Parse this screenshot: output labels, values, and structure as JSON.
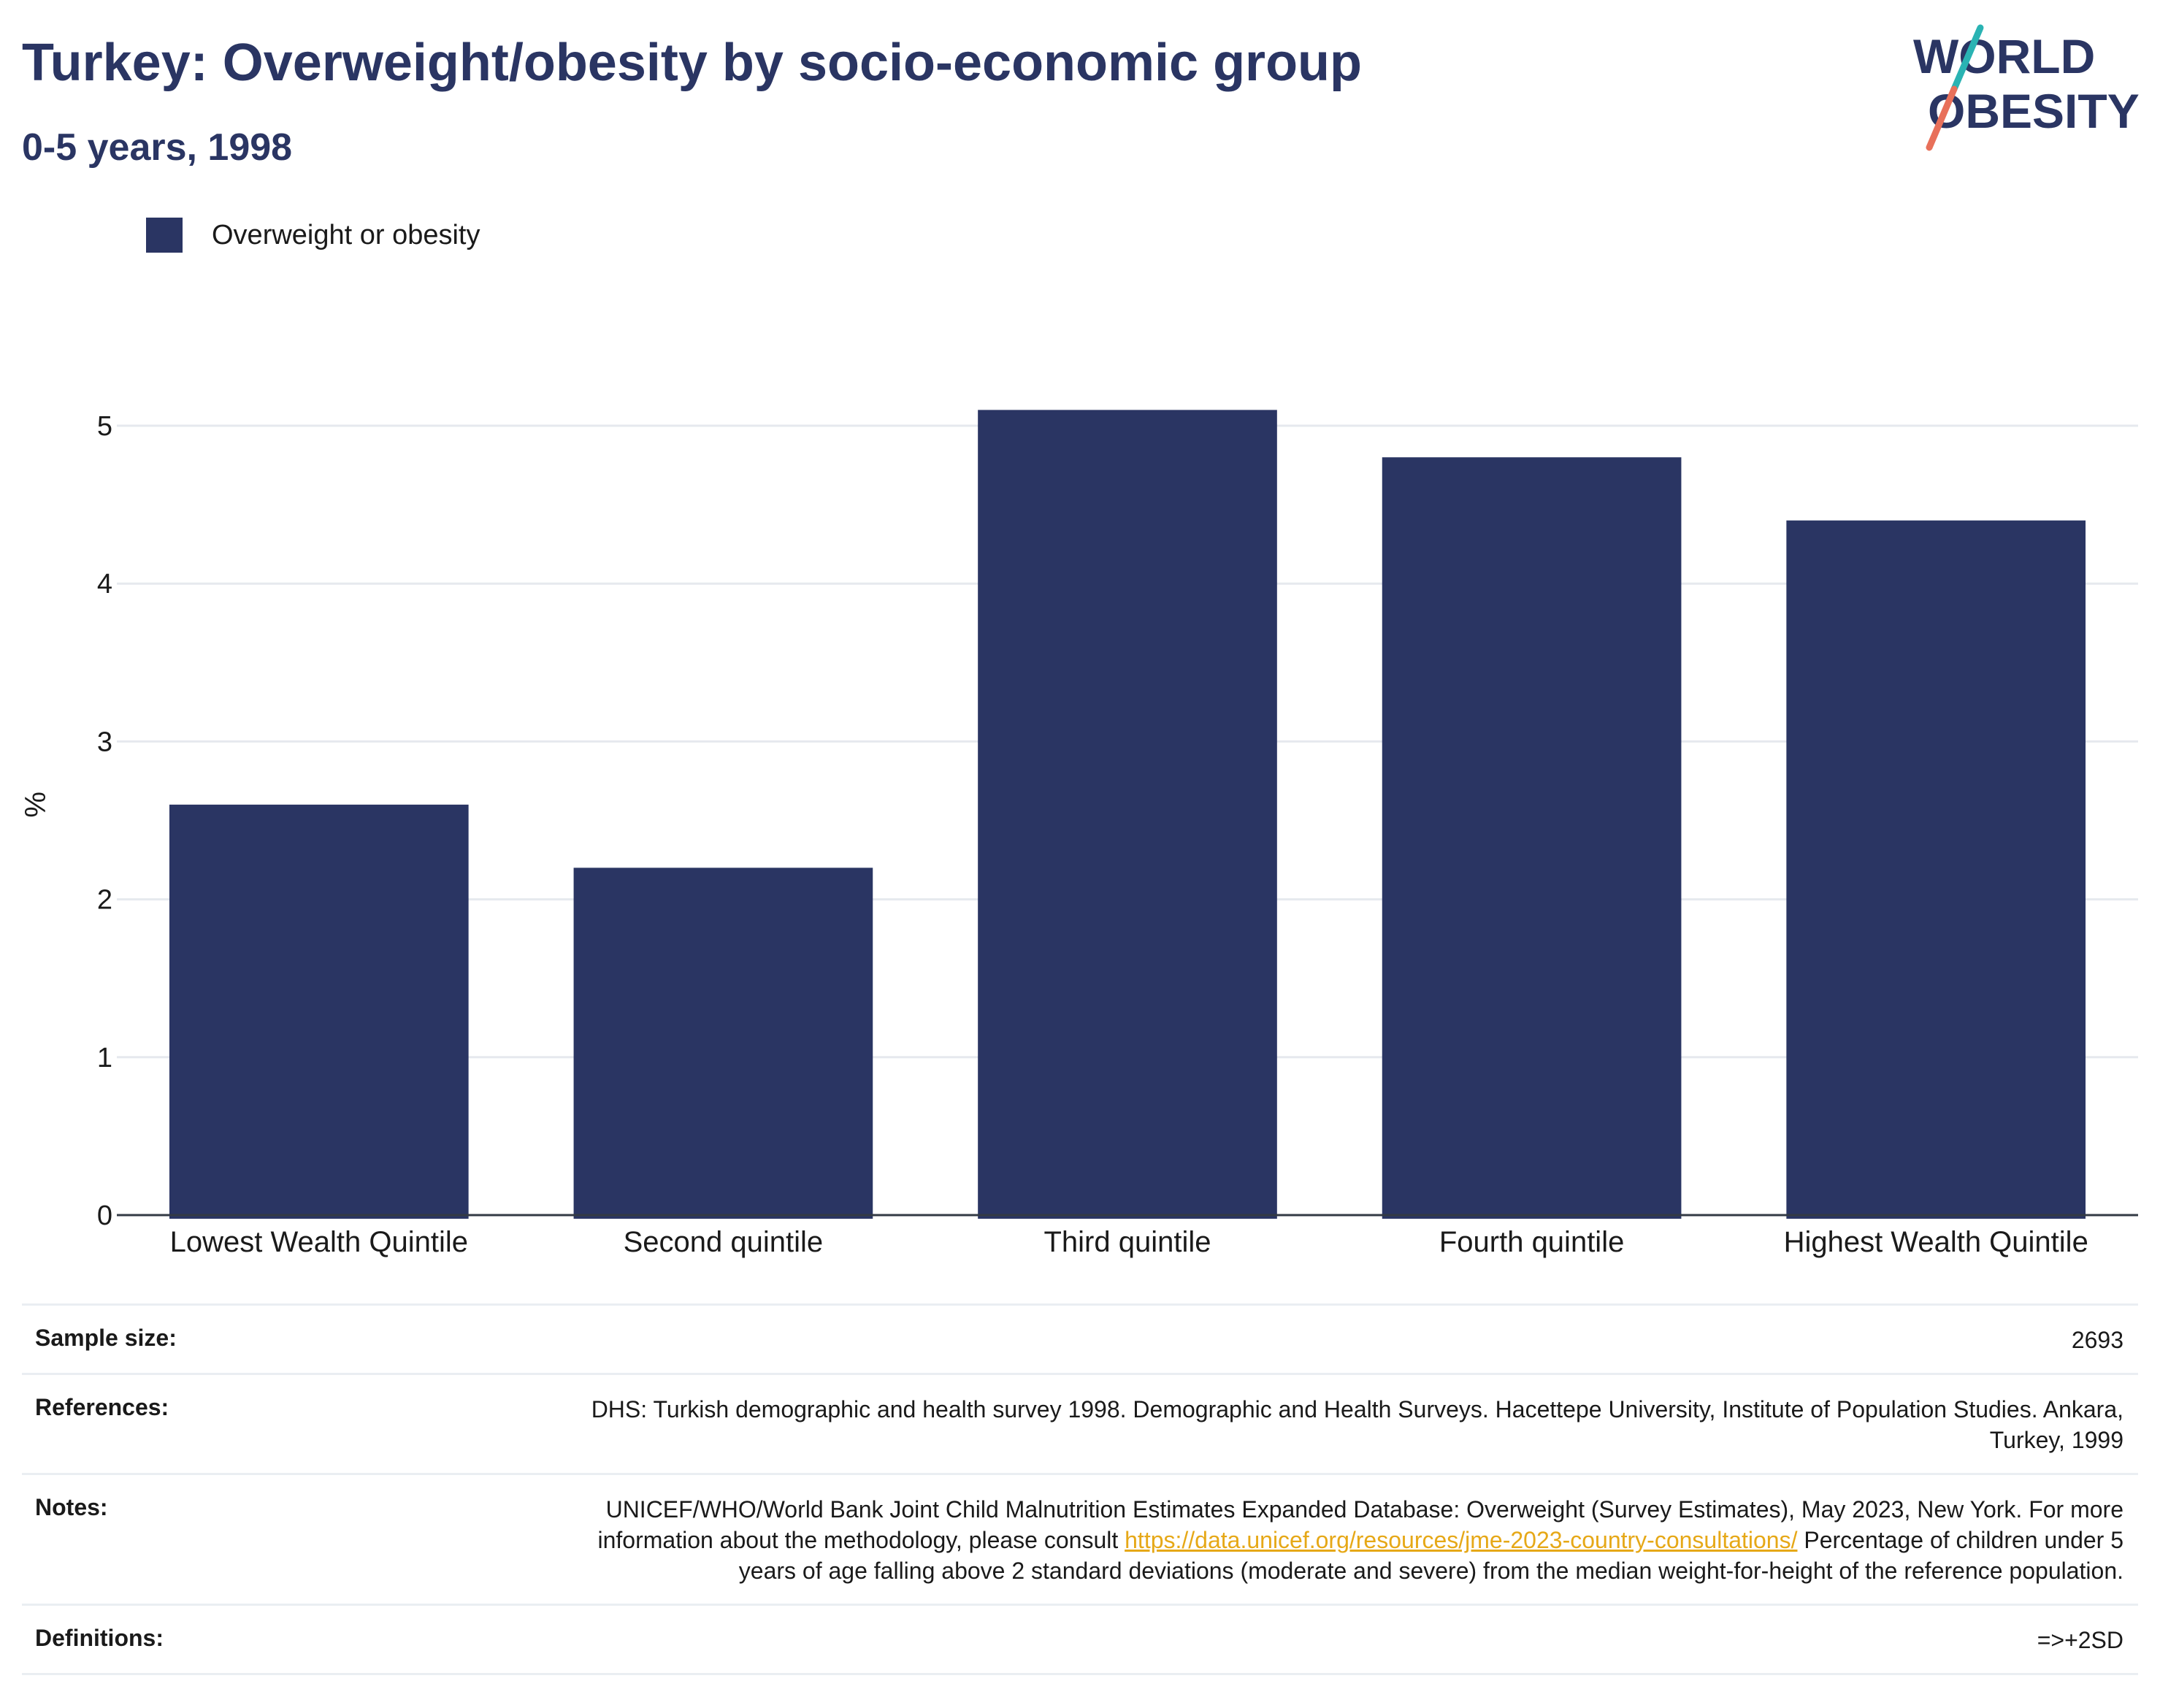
{
  "header": {
    "title": "Turkey: Overweight/obesity by socio-economic group",
    "subtitle": "0-5 years, 1998"
  },
  "logo": {
    "line1": "WORLD",
    "line2": "OBESITY",
    "colors": {
      "text": "#2a3563",
      "slash_top": "#2ab3b3",
      "slash_bottom": "#e8705a"
    }
  },
  "legend": {
    "label": "Overweight or obesity",
    "color": "#2a3563"
  },
  "chart_data": {
    "type": "bar",
    "title": "Turkey: Overweight/obesity by socio-economic group",
    "subtitle": "0-5 years, 1998",
    "categories": [
      "Lowest Wealth Quintile",
      "Second quintile",
      "Third quintile",
      "Fourth quintile",
      "Highest Wealth Quintile"
    ],
    "series": [
      {
        "name": "Overweight or obesity",
        "values": [
          2.6,
          2.2,
          5.1,
          4.8,
          4.4
        ],
        "color": "#2a3563"
      }
    ],
    "xlabel": "",
    "ylabel": "%",
    "ylim": [
      0,
      5.4
    ],
    "yticks": [
      0,
      1,
      2,
      3,
      4,
      5
    ],
    "grid": true,
    "legend_position": "top-left"
  },
  "info": {
    "sample_size_label": "Sample size:",
    "sample_size_value": "2693",
    "references_label": "References:",
    "references_value": "DHS: Turkish demographic and health survey 1998. Demographic and Health Surveys. Hacettepe University, Institute of Population Studies. Ankara, Turkey, 1999",
    "notes_label": "Notes:",
    "notes_text_1": "UNICEF/WHO/World Bank Joint Child Malnutrition Estimates Expanded Database: Overweight (Survey Estimates), May 2023, New York. For more information about the methodology, please consult ",
    "notes_link": "https://data.unicef.org/resources/jme-2023-country-consultations/",
    "notes_text_2": " Percentage of children under 5 years of age falling above 2 standard deviations (moderate and severe) from the median weight-for-height of the reference population.",
    "definitions_label": "Definitions:",
    "definitions_value": "=>+2SD"
  }
}
